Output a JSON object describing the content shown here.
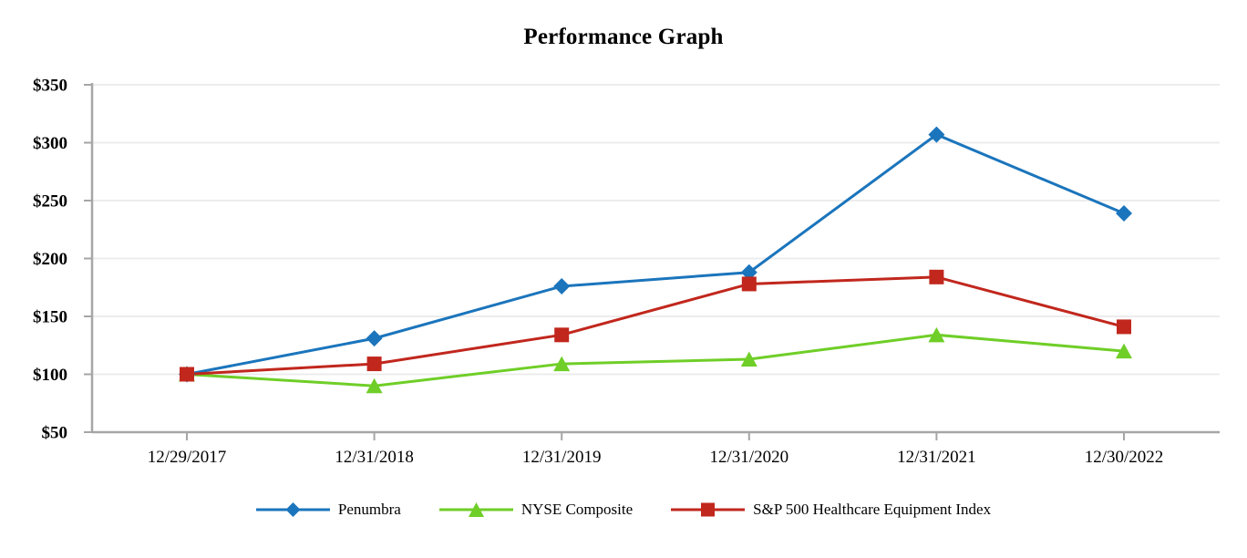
{
  "chart_data": {
    "type": "line",
    "title": "Performance Graph",
    "x_labels": [
      "12/29/2017",
      "12/31/2018",
      "12/31/2019",
      "12/31/2020",
      "12/31/2021",
      "12/30/2022"
    ],
    "y_ticks": [
      350,
      300,
      250,
      200,
      150,
      100,
      50
    ],
    "y_tick_prefix": "$",
    "ylim": [
      50,
      350
    ],
    "grid": true,
    "legend_position": "bottom",
    "axis_color": "#a6a6a6",
    "grid_color": "#ececec",
    "series": [
      {
        "name": "Penumbra",
        "color": "#1b75bc",
        "marker": "diamond",
        "values": [
          100,
          131,
          176,
          188,
          307,
          239
        ]
      },
      {
        "name": "NYSE Composite",
        "color": "#6fce27",
        "marker": "triangle",
        "values": [
          100,
          90,
          109,
          113,
          134,
          120
        ]
      },
      {
        "name": "S&P 500 Healthcare Equipment Index",
        "color": "#c1271d",
        "marker": "square",
        "values": [
          100,
          109,
          134,
          178,
          184,
          141
        ]
      }
    ]
  }
}
